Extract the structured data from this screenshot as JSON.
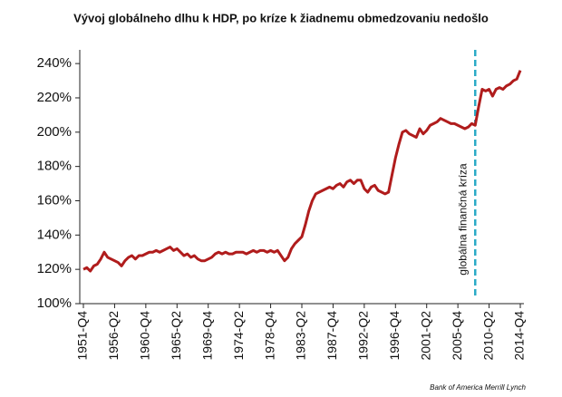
{
  "chart_data": {
    "type": "line",
    "title": "Vývoj globálneho dlhu k HDP, po kríze k žiadnemu obmedzovaniu nedošlo",
    "annotation": "globálna finančná kríza",
    "source": "Bank of America Merrill Lynch",
    "color": "#b01c1c",
    "annotation_color": "#2aaac6",
    "categories": [
      "1951-Q4",
      null,
      null,
      null,
      null,
      null,
      null,
      null,
      null,
      "1956-Q2",
      null,
      null,
      null,
      null,
      null,
      null,
      null,
      null,
      "1960-Q4",
      null,
      null,
      null,
      null,
      null,
      null,
      null,
      null,
      "1965-Q2",
      null,
      null,
      null,
      null,
      null,
      null,
      null,
      null,
      "1969-Q4",
      null,
      null,
      null,
      null,
      null,
      null,
      null,
      null,
      "1974-Q2",
      null,
      null,
      null,
      null,
      null,
      null,
      null,
      null,
      "1978-Q4",
      null,
      null,
      null,
      null,
      null,
      null,
      null,
      null,
      "1983-Q2",
      null,
      null,
      null,
      null,
      null,
      null,
      null,
      null,
      "1987-Q4",
      null,
      null,
      null,
      null,
      null,
      null,
      null,
      null,
      "1992-Q2",
      null,
      null,
      null,
      null,
      null,
      null,
      null,
      null,
      "1996-Q4",
      null,
      null,
      null,
      null,
      null,
      null,
      null,
      null,
      "2001-Q2",
      null,
      null,
      null,
      null,
      null,
      null,
      null,
      null,
      "2005-Q4",
      null,
      null,
      null,
      null,
      null,
      null,
      null,
      null,
      "2010-Q2",
      null,
      null,
      null,
      null,
      null,
      null,
      null,
      null,
      "2014-Q4"
    ],
    "values": [
      120,
      121,
      119,
      122,
      123,
      126,
      130,
      127,
      126,
      125,
      124,
      122,
      125,
      127,
      128,
      126,
      128,
      128,
      129,
      130,
      130,
      131,
      130,
      131,
      132,
      133,
      131,
      132,
      130,
      128,
      129,
      127,
      128,
      126,
      125,
      125,
      126,
      127,
      129,
      130,
      129,
      130,
      129,
      129,
      130,
      130,
      130,
      129,
      130,
      131,
      130,
      131,
      131,
      130,
      131,
      130,
      131,
      128,
      125,
      127,
      132,
      135,
      137,
      139,
      146,
      154,
      160,
      164,
      165,
      166,
      167,
      168,
      167,
      169,
      170,
      168,
      171,
      172,
      170,
      172,
      172,
      167,
      165,
      168,
      169,
      166,
      165,
      164,
      165,
      175,
      185,
      193,
      200,
      201,
      199,
      198,
      197,
      202,
      199,
      201,
      204,
      205,
      206,
      208,
      207,
      206,
      205,
      205,
      204,
      203,
      202,
      203,
      205,
      204,
      215,
      225,
      224,
      225,
      221,
      225,
      226,
      225,
      227,
      228,
      230,
      231,
      236
    ],
    "ylim": [
      100,
      248
    ],
    "yticks": [
      {
        "value": 100,
        "label": "100%"
      },
      {
        "value": 120,
        "label": "120%"
      },
      {
        "value": 140,
        "label": "140%"
      },
      {
        "value": 160,
        "label": "160%"
      },
      {
        "value": 180,
        "label": "180%"
      },
      {
        "value": 200,
        "label": "200%"
      },
      {
        "value": 220,
        "label": "220%"
      },
      {
        "value": 240,
        "label": "240%"
      }
    ]
  }
}
